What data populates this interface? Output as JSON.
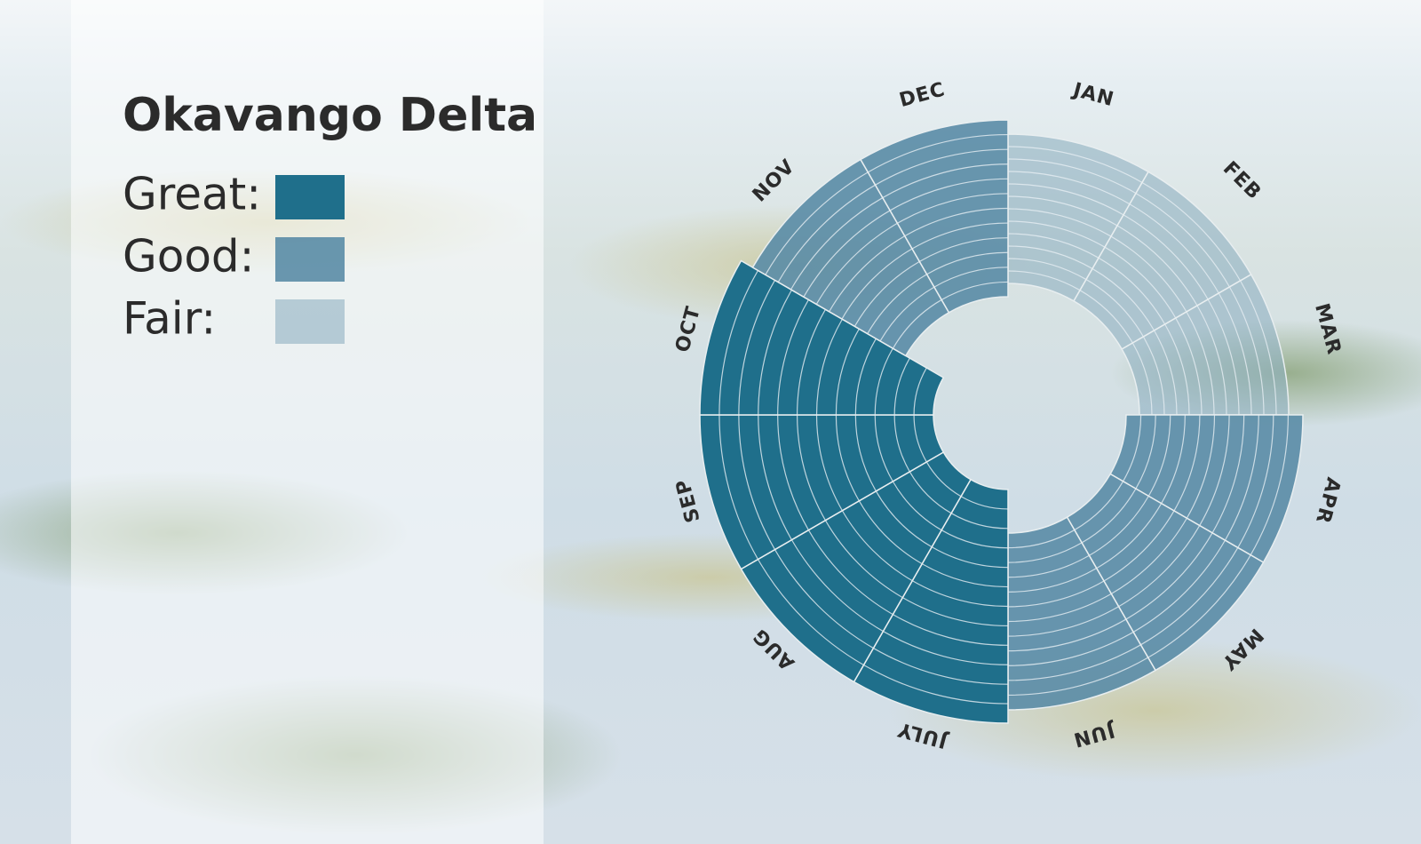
{
  "chart_data": {
    "type": "radial",
    "title": "Okavango Delta",
    "categories": [
      "JAN",
      "FEB",
      "MAR",
      "APR",
      "MAY",
      "JUN",
      "JULY",
      "AUG",
      "SEP",
      "OCT",
      "NOV",
      "DEC"
    ],
    "series": [
      {
        "name": "Great:",
        "color": "#1f6f8b",
        "categories": [
          "JULY",
          "AUG",
          "SEP",
          "OCT"
        ]
      },
      {
        "name": "Good:",
        "color": "#5a8ca6",
        "categories": [
          "APR",
          "MAY",
          "JUN",
          "NOV",
          "DEC"
        ]
      },
      {
        "name": "Fair:",
        "color": "#8fb0c2",
        "categories": [
          "JAN",
          "FEB",
          "MAR"
        ]
      }
    ]
  }
}
